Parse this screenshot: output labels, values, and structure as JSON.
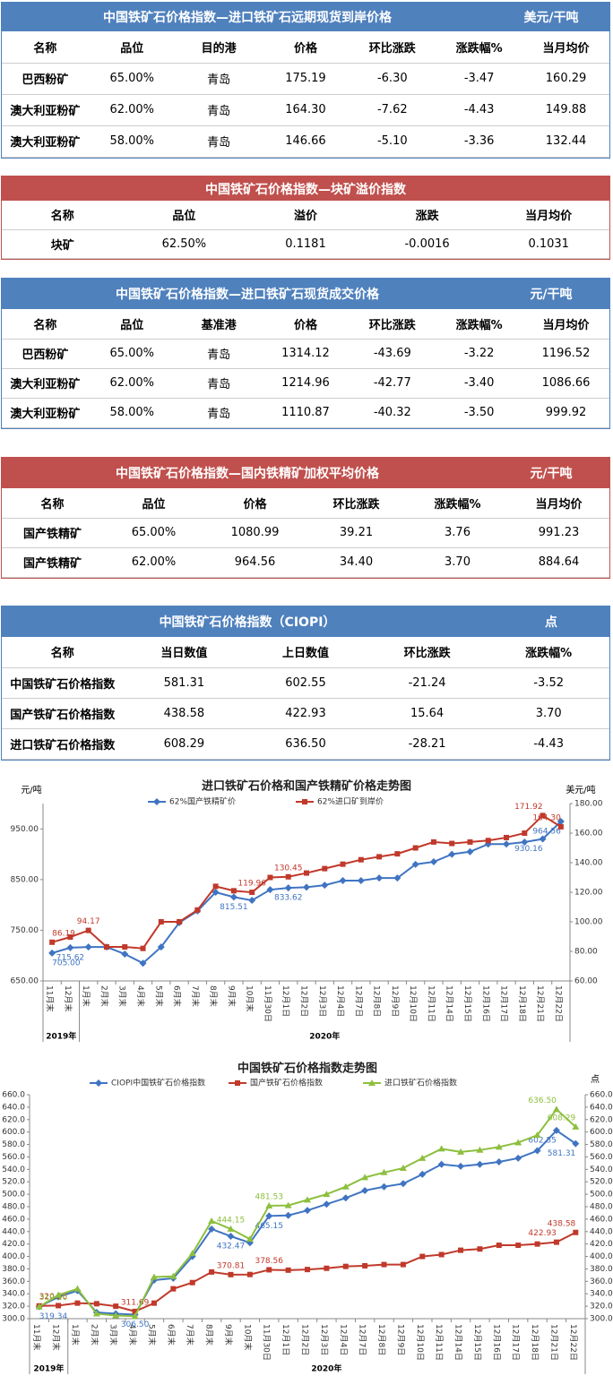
{
  "tables": [
    {
      "title": "中国铁矿石价格指数—进口铁矿石远期现货到岸价格",
      "unit": "美元/干吨",
      "color": "#4f81bd",
      "columns": [
        "名称",
        "品位",
        "目的港",
        "价格",
        "环比涨跌",
        "涨跌幅%",
        "当月均价"
      ],
      "rows": [
        [
          "巴西粉矿",
          "65.00%",
          "青岛",
          "175.19",
          "-6.30",
          "-3.47",
          "160.29"
        ],
        [
          "澳大利亚粉矿",
          "62.00%",
          "青岛",
          "164.30",
          "-7.62",
          "-4.43",
          "149.88"
        ],
        [
          "澳大利亚粉矿",
          "58.00%",
          "青岛",
          "146.66",
          "-5.10",
          "-3.36",
          "132.44"
        ]
      ]
    },
    {
      "title": "中国铁矿石价格指数—块矿溢价指数",
      "color": "#c0504d",
      "columns": [
        "名称",
        "品位",
        "溢价",
        "涨跌",
        "当月均价"
      ],
      "rows": [
        [
          "块矿",
          "62.50%",
          "0.1181",
          "-0.0016",
          "0.1031"
        ]
      ]
    },
    {
      "title": "中国铁矿石价格指数—进口铁矿石现货成交价格",
      "unit": "元/干吨",
      "color": "#4f81bd",
      "columns": [
        "名称",
        "品位",
        "基准港",
        "价格",
        "环比涨跌",
        "涨跌幅%",
        "当月均价"
      ],
      "rows": [
        [
          "巴西粉矿",
          "65.00%",
          "青岛",
          "1314.12",
          "-43.69",
          "-3.22",
          "1196.52"
        ],
        [
          "澳大利亚粉矿",
          "62.00%",
          "青岛",
          "1214.96",
          "-42.77",
          "-3.40",
          "1086.66"
        ],
        [
          "澳大利亚粉矿",
          "58.00%",
          "青岛",
          "1110.87",
          "-40.32",
          "-3.50",
          "999.92"
        ]
      ]
    },
    {
      "title": "中国铁矿石价格指数—国内铁精矿加权平均价格",
      "unit": "元/干吨",
      "color": "#c0504d",
      "columns": [
        "名称",
        "品位",
        "价格",
        "环比涨跌",
        "涨跌幅%",
        "当月均价"
      ],
      "rows": [
        [
          "国产铁精矿",
          "65.00%",
          "1080.99",
          "39.21",
          "3.76",
          "991.23"
        ],
        [
          "国产铁精矿",
          "62.00%",
          "964.56",
          "34.40",
          "3.70",
          "884.64"
        ]
      ]
    },
    {
      "title": "中国铁矿石价格指数（CIOPI）",
      "unit": "点",
      "color": "#4f81bd",
      "columns": [
        "名称",
        "当日数值",
        "上日数值",
        "环比涨跌",
        "涨跌幅%"
      ],
      "rows": [
        [
          "中国铁矿石价格指数",
          "581.31",
          "602.55",
          "-21.24",
          "-3.52"
        ],
        [
          "国产铁矿石价格指数",
          "438.58",
          "422.93",
          "15.64",
          "3.70"
        ],
        [
          "进口铁矿石价格指数",
          "608.29",
          "636.50",
          "-28.21",
          "-4.43"
        ]
      ]
    }
  ],
  "chart_data": [
    {
      "type": "line",
      "title": "进口铁矿石价格和国产铁精矿价格走势图",
      "y_label": "元/吨",
      "y2_label": "美元/吨",
      "categories": [
        "11月末",
        "12月末",
        "1月末",
        "2月末",
        "3月末",
        "4月末",
        "5月末",
        "6月末",
        "7月末",
        "8月末",
        "9月末",
        "10月末",
        "11月30日",
        "12月1日",
        "12月2日",
        "12月3日",
        "12月4日",
        "12月7日",
        "12月8日",
        "12月9日",
        "12月10日",
        "12月11日",
        "12月14日",
        "12月15日",
        "12月16日",
        "12月17日",
        "12月18日",
        "12月21日",
        "12月22日"
      ],
      "year_labels": [
        "2019年",
        "2020年"
      ],
      "ylim": [
        650,
        1000
      ],
      "yticks": [
        {
          "value": 650,
          "label": "650.00"
        },
        {
          "value": 750,
          "label": "750.00"
        },
        {
          "value": 850,
          "label": "850.00"
        },
        {
          "value": 950,
          "label": "950.00"
        }
      ],
      "y2lim": [
        60,
        180
      ],
      "y2ticks": [
        {
          "value": 60,
          "label": "60.00"
        },
        {
          "value": 80,
          "label": "80.00"
        },
        {
          "value": 100,
          "label": "100.00"
        },
        {
          "value": 120,
          "label": "120.00"
        },
        {
          "value": 140,
          "label": "140.00"
        },
        {
          "value": 160,
          "label": "160.00"
        },
        {
          "value": 180,
          "label": "180.00"
        }
      ],
      "series": [
        {
          "name": "62%国产铁精矿价",
          "color": "#3f74c2",
          "marker": "diamond",
          "values": [
            705.0,
            715.62,
            717,
            717,
            703,
            685,
            717,
            765,
            788,
            825,
            815.51,
            809,
            830,
            833.62,
            835,
            839,
            848,
            848,
            853,
            853,
            880,
            885,
            900,
            905,
            920,
            920,
            924,
            930.16,
            964.56
          ],
          "value_labels": [
            "705.00",
            "715.62",
            null,
            null,
            null,
            null,
            null,
            null,
            null,
            null,
            "815.51",
            null,
            null,
            "833.62",
            null,
            null,
            null,
            null,
            null,
            null,
            null,
            null,
            null,
            null,
            null,
            null,
            null,
            "930.16",
            "964.56"
          ]
        },
        {
          "name": "62%进口矿到岸价",
          "color": "#c0392b",
          "marker": "square",
          "axis": "y2",
          "values": [
            86.19,
            89.7,
            94.17,
            83,
            83,
            82,
            100,
            100,
            108,
            124,
            121,
            119.96,
            130,
            130.45,
            133,
            136,
            139,
            142,
            144,
            146,
            150,
            154,
            153,
            154,
            155,
            157,
            160,
            171.92,
            164.3
          ],
          "value_labels": [
            "86.19",
            null,
            "94.17",
            null,
            null,
            null,
            null,
            null,
            null,
            null,
            null,
            "119.96",
            null,
            "130.45",
            null,
            null,
            null,
            null,
            null,
            null,
            null,
            null,
            null,
            null,
            null,
            null,
            null,
            "171.92",
            "164.30"
          ]
        }
      ]
    },
    {
      "type": "line",
      "title": "中国铁矿石价格指数走势图",
      "y2_label": "点",
      "categories": [
        "11月末",
        "12月末",
        "1月末",
        "2月末",
        "3月末",
        "4月末",
        "5月末",
        "6月末",
        "7月末",
        "8月末",
        "9月末",
        "10月末",
        "11月30日",
        "12月1日",
        "12月2日",
        "12月3日",
        "12月4日",
        "12月7日",
        "12月8日",
        "12月9日",
        "12月10日",
        "12月11日",
        "12月14日",
        "12月15日",
        "12月16日",
        "12月17日",
        "12月18日",
        "12月21日",
        "12月22日"
      ],
      "year_labels": [
        "2019年",
        "2020年"
      ],
      "ylim": [
        300,
        660
      ],
      "yticks": [
        {
          "value": 300,
          "label": "300.0"
        },
        {
          "value": 320,
          "label": "320.0"
        },
        {
          "value": 340,
          "label": "340.0"
        },
        {
          "value": 360,
          "label": "360.0"
        },
        {
          "value": 380,
          "label": "380.0"
        },
        {
          "value": 400,
          "label": "400.0"
        },
        {
          "value": 420,
          "label": "420.0"
        },
        {
          "value": 440,
          "label": "440.0"
        },
        {
          "value": 460,
          "label": "460.0"
        },
        {
          "value": 480,
          "label": "480.0"
        },
        {
          "value": 500,
          "label": "500.0"
        },
        {
          "value": 520,
          "label": "520.0"
        },
        {
          "value": 540,
          "label": "540.0"
        },
        {
          "value": 560,
          "label": "560.0"
        },
        {
          "value": 580,
          "label": "580.0"
        },
        {
          "value": 600,
          "label": "600.0"
        },
        {
          "value": 620,
          "label": "620.0"
        },
        {
          "value": 640,
          "label": "640.0"
        },
        {
          "value": 660,
          "label": "660.0"
        }
      ],
      "y2lim": [
        300,
        660
      ],
      "y2ticks": [
        {
          "value": 300,
          "label": "300.0"
        },
        {
          "value": 320,
          "label": "320.0"
        },
        {
          "value": 340,
          "label": "340.0"
        },
        {
          "value": 360,
          "label": "360.0"
        },
        {
          "value": 380,
          "label": "380.0"
        },
        {
          "value": 400,
          "label": "400.0"
        },
        {
          "value": 420,
          "label": "420.0"
        },
        {
          "value": 440,
          "label": "440.0"
        },
        {
          "value": 460,
          "label": "460.0"
        },
        {
          "value": 480,
          "label": "480.0"
        },
        {
          "value": 500,
          "label": "500.0"
        },
        {
          "value": 520,
          "label": "520.0"
        },
        {
          "value": 540,
          "label": "540.0"
        },
        {
          "value": 560,
          "label": "560.0"
        },
        {
          "value": 580,
          "label": "580.0"
        },
        {
          "value": 600,
          "label": "600.0"
        },
        {
          "value": 620,
          "label": "620.0"
        },
        {
          "value": 640,
          "label": "640.0"
        },
        {
          "value": 660,
          "label": "660.0"
        }
      ],
      "series": [
        {
          "name": "CIOPI中国铁矿石价格指数",
          "color": "#3f74c2",
          "marker": "diamond",
          "values": [
            319.34,
            335,
            345,
            310,
            308,
            306.5,
            362,
            365,
            400,
            444,
            432.47,
            422,
            465.15,
            466,
            474,
            484,
            494,
            506,
            512,
            517,
            532,
            548,
            545,
            548,
            552,
            558,
            570,
            602.55,
            581.31
          ],
          "value_labels": [
            "319.34",
            null,
            null,
            null,
            null,
            "306.50",
            null,
            null,
            null,
            null,
            "432.47",
            null,
            "465.15",
            null,
            null,
            null,
            null,
            null,
            null,
            null,
            null,
            null,
            null,
            null,
            null,
            null,
            null,
            "602.55",
            "581.31"
          ]
        },
        {
          "name": "国产铁矿石价格指数",
          "color": "#c0392b",
          "marker": "square",
          "values": [
            320.56,
            321,
            325,
            324,
            320,
            311.69,
            325,
            348,
            358,
            375,
            370.81,
            371,
            378.56,
            378,
            379,
            381,
            384,
            385,
            387,
            387,
            400,
            403,
            410,
            412,
            418,
            418,
            420,
            422.93,
            438.58
          ],
          "value_labels": [
            "320.56",
            null,
            null,
            null,
            null,
            "311.69",
            null,
            null,
            null,
            null,
            "370.81",
            null,
            "378.56",
            null,
            null,
            null,
            null,
            null,
            null,
            null,
            null,
            null,
            null,
            null,
            null,
            null,
            null,
            "422.93",
            "438.58"
          ]
        },
        {
          "name": "进口铁矿石价格指数",
          "color": "#8dbf3e",
          "marker": "triangle",
          "values": [
            319.1,
            338,
            348,
            308,
            305,
            304,
            367,
            368,
            405,
            457,
            444.15,
            428,
            481.53,
            482,
            491,
            500,
            512,
            527,
            535,
            542,
            558,
            573,
            568,
            571,
            576,
            583,
            595,
            636.5,
            608.29
          ],
          "value_labels": [
            "319.10",
            null,
            null,
            null,
            null,
            null,
            null,
            null,
            null,
            null,
            "444.15",
            null,
            "481.53",
            null,
            null,
            null,
            null,
            null,
            null,
            null,
            null,
            null,
            null,
            null,
            null,
            null,
            null,
            "636.50",
            "608.29"
          ]
        }
      ]
    }
  ]
}
